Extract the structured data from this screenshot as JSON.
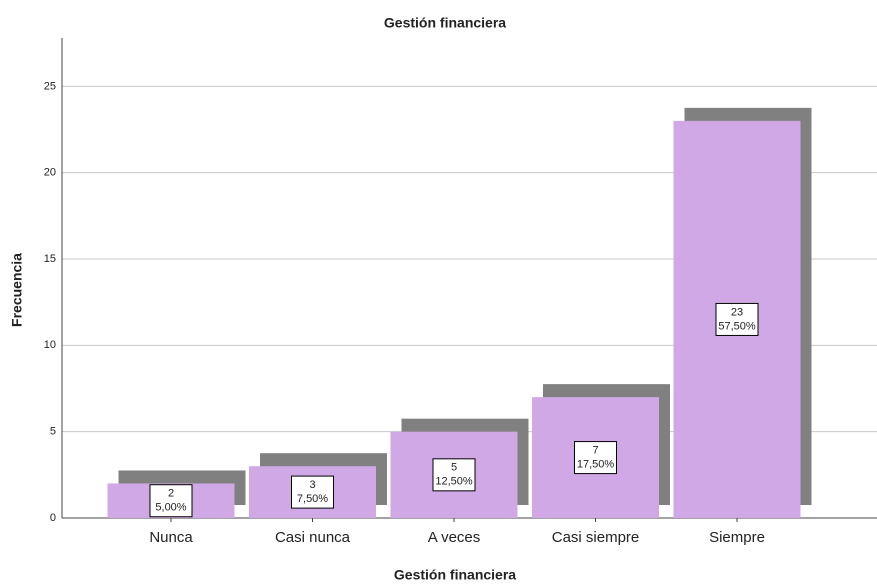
{
  "chart_data": {
    "type": "bar",
    "title": "Gestión financiera",
    "x_label": "Gestión financiera",
    "y_label": "Frecuencia",
    "categories": [
      "Nunca",
      "Casi nunca",
      "A veces",
      "Casi siempre",
      "Siempre"
    ],
    "values": [
      2,
      3,
      5,
      7,
      23
    ],
    "percentages": {
      "values": [
        5,
        7.5,
        12.5,
        17.5,
        57.5
      ],
      "value_labels": [
        "5,00%",
        "7,50%",
        "12,50%",
        "17,50%",
        "57,50%"
      ]
    },
    "color": "#d0a8e6",
    "shadow_color": "#808080",
    "ylim": [
      0,
      27.8
    ],
    "yticks": [
      0,
      5,
      10,
      15,
      20,
      25
    ],
    "grid": true
  }
}
